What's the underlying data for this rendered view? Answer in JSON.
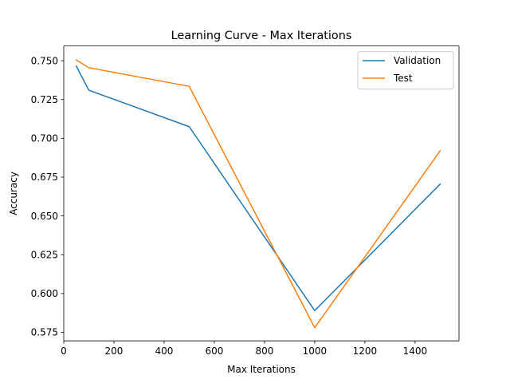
{
  "chart_data": {
    "type": "line",
    "title": "Learning Curve - Max Iterations",
    "xlabel": "Max Iterations",
    "ylabel": "Accuracy",
    "xlim": [
      0,
      1575
    ],
    "ylim": [
      0.5695,
      0.7595
    ],
    "xticks": [
      0,
      200,
      400,
      600,
      800,
      1000,
      1200,
      1400
    ],
    "yticks": [
      0.575,
      0.6,
      0.625,
      0.65,
      0.675,
      0.7,
      0.725,
      0.75
    ],
    "ytick_labels": [
      "0.575",
      "0.600",
      "0.625",
      "0.650",
      "0.675",
      "0.700",
      "0.725",
      "0.750"
    ],
    "x": [
      50,
      100,
      500,
      1000,
      1500
    ],
    "series": [
      {
        "name": "Validation",
        "color": "#1f77b4",
        "values": [
          0.7465,
          0.731,
          0.7075,
          0.589,
          0.6705
        ]
      },
      {
        "name": "Test",
        "color": "#ff7f0e",
        "values": [
          0.7505,
          0.7455,
          0.7335,
          0.578,
          0.692
        ]
      }
    ],
    "grid": false,
    "legend": "top-right"
  }
}
